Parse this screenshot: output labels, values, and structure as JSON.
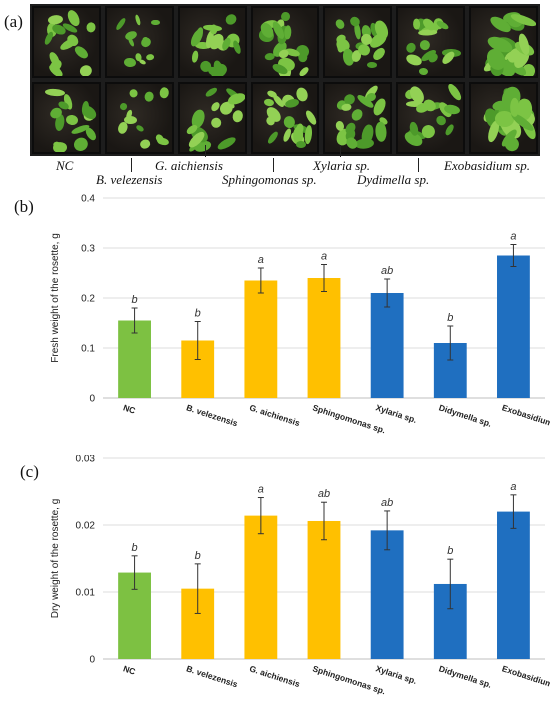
{
  "panels": {
    "a": "(a)",
    "b": "(b)",
    "c": "(c)"
  },
  "photo": {
    "labels": [
      "NC",
      "B. velezensis",
      "G. aichiensis",
      "Sphingomonas sp.",
      "Xylaria sp.",
      "Dydimella sp.",
      "Exobasidium sp."
    ],
    "soil_color": "#2b2620",
    "leaf_colors": [
      "#5fae35",
      "#7cc444",
      "#4d9a2a",
      "#93d155"
    ]
  },
  "chart_data": [
    {
      "type": "bar",
      "categories": [
        "NC",
        "B. velezensis",
        "G. aichiensis",
        "Sphingomonas sp.",
        "Xylaria sp.",
        "Didymella sp.",
        "Exobasidium sp."
      ],
      "values": [
        0.155,
        0.115,
        0.235,
        0.24,
        0.21,
        0.11,
        0.285
      ],
      "errors": [
        0.025,
        0.038,
        0.025,
        0.027,
        0.028,
        0.034,
        0.022
      ],
      "letters": [
        "b",
        "b",
        "a",
        "a",
        "ab",
        "b",
        "a"
      ],
      "colors": [
        "#7dc142",
        "#ffc000",
        "#ffc000",
        "#ffc000",
        "#1f6fc0",
        "#1f6fc0",
        "#1f6fc0"
      ],
      "ylabel": "Fresh weight of the rosette, g",
      "ylim": [
        0,
        0.4
      ],
      "yticks": [
        0,
        0.1,
        0.2,
        0.3,
        0.4
      ],
      "ytick_labels": [
        "0",
        "0.1",
        "0.2",
        "0.3",
        "0.4"
      ],
      "grid": true
    },
    {
      "type": "bar",
      "categories": [
        "NC",
        "B. velezensis",
        "G. aichiensis",
        "Sphingomonas sp.",
        "Xylaria sp.",
        "Didymella sp.",
        "Exobasidium sp."
      ],
      "values": [
        0.0129,
        0.0105,
        0.0214,
        0.0206,
        0.0192,
        0.0112,
        0.022
      ],
      "errors": [
        0.0025,
        0.0037,
        0.0027,
        0.0028,
        0.0029,
        0.0037,
        0.0025
      ],
      "letters": [
        "b",
        "b",
        "a",
        "ab",
        "ab",
        "b",
        "a"
      ],
      "colors": [
        "#7dc142",
        "#ffc000",
        "#ffc000",
        "#ffc000",
        "#1f6fc0",
        "#1f6fc0",
        "#1f6fc0"
      ],
      "ylabel": "Dry weight of the rosette, g",
      "ylim": [
        0,
        0.03
      ],
      "yticks": [
        0,
        0.01,
        0.02,
        0.03
      ],
      "ytick_labels": [
        "0",
        "0.01",
        "0.02",
        "0.03"
      ],
      "grid": true
    }
  ]
}
